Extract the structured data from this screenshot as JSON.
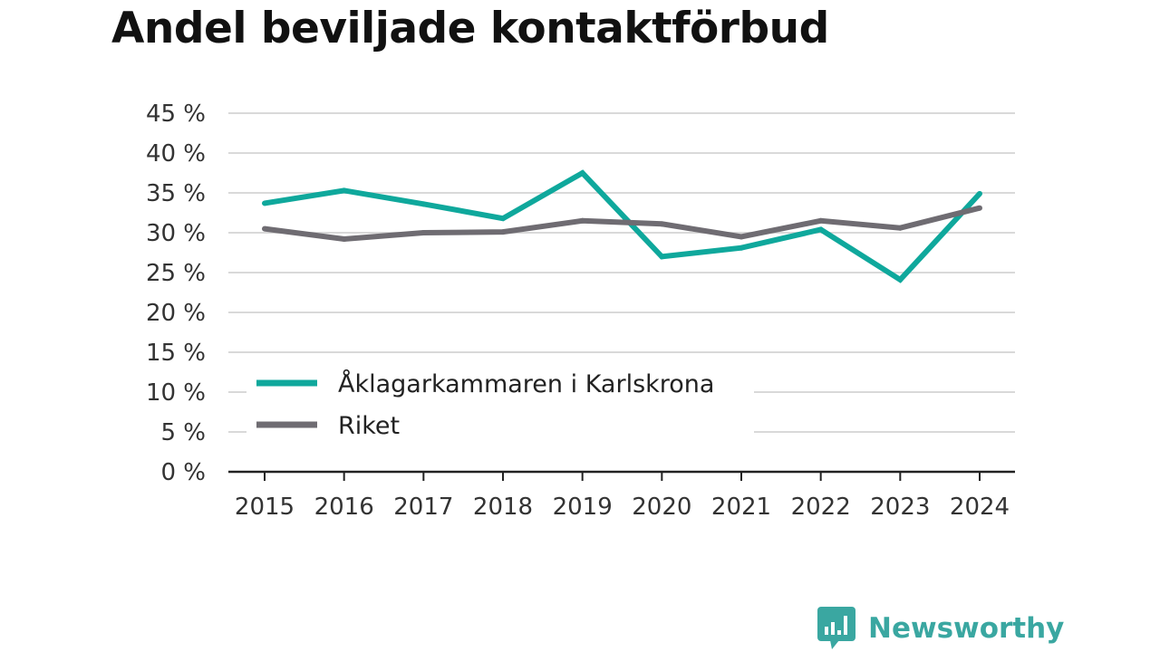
{
  "title": "Andel beviljade kontaktförbud",
  "brand": {
    "name": "Newsworthy",
    "color": "#3aa7a1",
    "icon": "bar-chart-speech-bubble-icon"
  },
  "colors": {
    "series1": "#0fa89c",
    "series2": "#6f6c72",
    "grid": "#d9d9d9",
    "axis": "#222222"
  },
  "chart_data": {
    "type": "line",
    "title": "Andel beviljade kontaktförbud",
    "xlabel": "",
    "ylabel": "",
    "x": [
      "2015",
      "2016",
      "2017",
      "2018",
      "2019",
      "2020",
      "2021",
      "2022",
      "2023",
      "2024"
    ],
    "ylim": [
      0,
      45
    ],
    "yticks": [
      0,
      5,
      10,
      15,
      20,
      25,
      30,
      35,
      40,
      45
    ],
    "ytick_labels": [
      "0 %",
      "5 %",
      "10 %",
      "15 %",
      "20 %",
      "25 %",
      "30 %",
      "35 %",
      "40 %",
      "45 %"
    ],
    "grid": true,
    "legend_position": "lower-left",
    "series": [
      {
        "name": "Åklagarkammaren i Karlskrona",
        "values": [
          33.7,
          35.3,
          33.6,
          31.8,
          37.5,
          27.0,
          28.1,
          30.4,
          24.1,
          34.9
        ]
      },
      {
        "name": "Riket",
        "values": [
          30.5,
          29.2,
          30.0,
          30.1,
          31.5,
          31.1,
          29.5,
          31.5,
          30.6,
          33.1
        ]
      }
    ]
  }
}
